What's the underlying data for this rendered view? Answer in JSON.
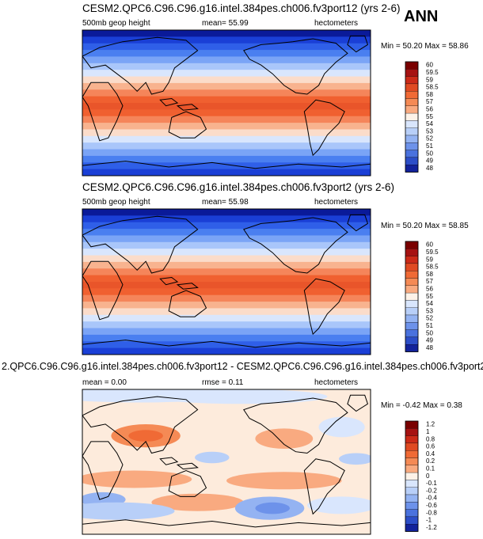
{
  "season": "ANN",
  "panels": [
    {
      "title": "CESM2.QPC6.C96.C96.g16.intel.384pes.ch006.fv3port12 (yrs 2-6)",
      "left_label": "500mb geop height",
      "center_label": "mean=  55.99",
      "units": "hectometers",
      "minmax": "Min =  50.20 Max =  58.86",
      "levels": [
        "60",
        "59.5",
        "59",
        "58.5",
        "58",
        "57",
        "56",
        "55",
        "54",
        "53",
        "52",
        "51",
        "50",
        "49",
        "48"
      ]
    },
    {
      "title": "CESM2.QPC6.C96.C96.g16.intel.384pes.ch006.fv3port2 (yrs 2-6)",
      "left_label": "500mb geop height",
      "center_label": "mean=  55.98",
      "units": "hectometers",
      "minmax": "Min =  50.20 Max =  58.85",
      "levels": [
        "60",
        "59.5",
        "59",
        "58.5",
        "58",
        "57",
        "56",
        "55",
        "54",
        "53",
        "52",
        "51",
        "50",
        "49",
        "48"
      ]
    },
    {
      "title": "2.QPC6.C96.C96.g16.intel.384pes.ch006.fv3port12 - CESM2.QPC6.C96.C96.g16.intel.384pes.ch006.fv3port2",
      "left_label": "mean =   0.00",
      "center_label": "rmse =   0.11",
      "units": "hectometers",
      "minmax": "Min =  -0.42 Max =   0.38",
      "levels": [
        "1.2",
        "1",
        "0.8",
        "0.6",
        "0.4",
        "0.2",
        "0.1",
        "0",
        "-0.1",
        "-0.2",
        "-0.4",
        "-0.6",
        "-0.8",
        "-1",
        "-1.2"
      ]
    }
  ],
  "colors": {
    "fullfield_bands": [
      "#0a1a99",
      "#1a3fd6",
      "#2f5fe8",
      "#4a7ff0",
      "#7aa4f6",
      "#a9c6fa",
      "#d9e6fd",
      "#fbdcca",
      "#f8b38f",
      "#f5855a",
      "#f06030",
      "#e9552a",
      "#f06030",
      "#f5855a",
      "#f8b38f",
      "#fbdcca",
      "#d9e6fd",
      "#a9c6fa",
      "#7aa4f6",
      "#4a7ff0",
      "#2f5fe8",
      "#1a3fd6"
    ],
    "colorbar": [
      "#7a0000",
      "#a61212",
      "#cc2a18",
      "#e04a22",
      "#f06a35",
      "#f58a55",
      "#f9aa80",
      "#fdf2e8",
      "#d9e6fd",
      "#b8cff8",
      "#94b3f2",
      "#6d92ea",
      "#4a72de",
      "#2c4ec8",
      "#12229b"
    ],
    "diff_background": "#fdebdc"
  },
  "icons": [
    "coastline-map"
  ]
}
